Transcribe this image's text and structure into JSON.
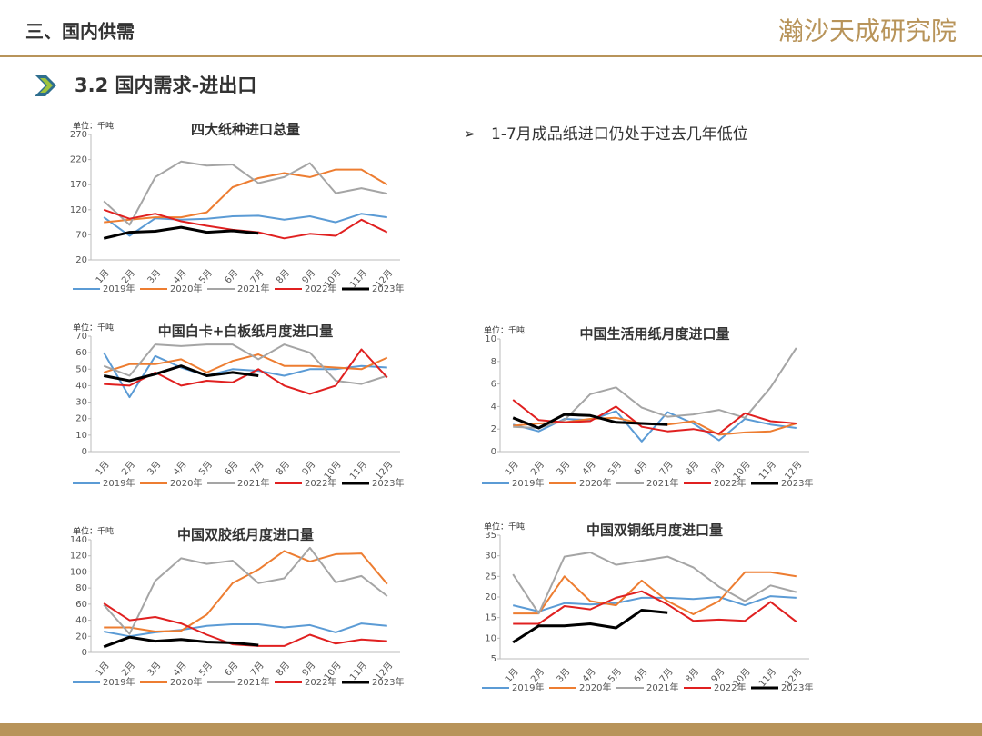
{
  "header": {
    "title": "三、国内供需",
    "logo": "瀚沙天成研究院"
  },
  "subtitle": "3.2 国内需求-进出口",
  "bullet": "1-7月成品纸进口仍处于过去几年低位",
  "chart_data": [
    {
      "type": "line",
      "title": "四大纸种进口总量",
      "unit": "单位：千吨",
      "categories": [
        "1月",
        "2月",
        "3月",
        "4月",
        "5月",
        "6月",
        "7月",
        "8月",
        "9月",
        "10月",
        "11月",
        "12月"
      ],
      "ylim": [
        20,
        270
      ],
      "yticks": [
        20,
        70,
        120,
        170,
        220,
        270
      ],
      "series": [
        {
          "name": "2019年",
          "color": "#5b9bd5",
          "values": [
            105,
            68,
            103,
            100,
            102,
            107,
            108,
            100,
            107,
            95,
            112,
            105
          ]
        },
        {
          "name": "2020年",
          "color": "#ed7d31",
          "values": [
            95,
            100,
            105,
            105,
            115,
            165,
            183,
            193,
            185,
            200,
            200,
            170
          ]
        },
        {
          "name": "2021年",
          "color": "#a5a5a5",
          "values": [
            137,
            90,
            185,
            216,
            208,
            210,
            173,
            185,
            213,
            153,
            163,
            152
          ]
        },
        {
          "name": "2022年",
          "color": "#e02020",
          "values": [
            120,
            102,
            112,
            97,
            88,
            80,
            75,
            63,
            72,
            68,
            100,
            75
          ]
        },
        {
          "name": "2023年",
          "color": "#000000",
          "values": [
            63,
            75,
            77,
            85,
            75,
            78,
            73,
            null,
            null,
            null,
            null,
            null
          ]
        }
      ]
    },
    {
      "type": "line",
      "title": "中国白卡+白板纸月度进口量",
      "unit": "单位：千吨",
      "categories": [
        "1月",
        "2月",
        "3月",
        "4月",
        "5月",
        "6月",
        "7月",
        "8月",
        "9月",
        "10月",
        "11月",
        "12月"
      ],
      "ylim": [
        0,
        70
      ],
      "yticks": [
        0,
        10,
        20,
        30,
        40,
        50,
        60,
        70
      ],
      "series": [
        {
          "name": "2019年",
          "color": "#5b9bd5",
          "values": [
            60,
            33,
            58,
            51,
            46,
            50,
            49,
            46,
            50,
            50,
            52,
            51
          ]
        },
        {
          "name": "2020年",
          "color": "#ed7d31",
          "values": [
            48,
            53,
            53,
            56,
            48,
            55,
            59,
            52,
            52,
            51,
            50,
            57
          ]
        },
        {
          "name": "2021年",
          "color": "#a5a5a5",
          "values": [
            52,
            46,
            65,
            64,
            65,
            65,
            56,
            65,
            60,
            43,
            41,
            46
          ]
        },
        {
          "name": "2022年",
          "color": "#e02020",
          "values": [
            41,
            40,
            48,
            40,
            43,
            42,
            50,
            40,
            35,
            40,
            62,
            45
          ]
        },
        {
          "name": "2023年",
          "color": "#000000",
          "values": [
            46,
            43,
            47,
            52,
            46,
            48,
            46,
            null,
            null,
            null,
            null,
            null
          ]
        }
      ]
    },
    {
      "type": "line",
      "title": "中国生活用纸月度进口量",
      "unit": "单位：千吨",
      "categories": [
        "1月",
        "2月",
        "3月",
        "4月",
        "5月",
        "6月",
        "7月",
        "8月",
        "9月",
        "10月",
        "11月",
        "12月"
      ],
      "ylim": [
        0,
        10
      ],
      "yticks": [
        0,
        2,
        4,
        6,
        8,
        10
      ],
      "series": [
        {
          "name": "2019年",
          "color": "#5b9bd5",
          "values": [
            2.4,
            1.8,
            2.9,
            2.8,
            3.6,
            0.9,
            3.5,
            2.5,
            1.0,
            2.9,
            2.4,
            2.1
          ]
        },
        {
          "name": "2020年",
          "color": "#ed7d31",
          "values": [
            2.3,
            2.5,
            2.6,
            2.9,
            3.0,
            2.5,
            2.4,
            2.7,
            1.5,
            1.7,
            1.8,
            2.5
          ]
        },
        {
          "name": "2021年",
          "color": "#a5a5a5",
          "values": [
            2.2,
            2.1,
            2.8,
            5.1,
            5.7,
            3.9,
            3.1,
            3.3,
            3.7,
            3.0,
            5.7,
            9.2
          ]
        },
        {
          "name": "2022年",
          "color": "#e02020",
          "values": [
            4.6,
            2.8,
            2.6,
            2.7,
            4.0,
            2.2,
            1.8,
            2.0,
            1.6,
            3.4,
            2.7,
            2.5
          ]
        },
        {
          "name": "2023年",
          "color": "#000000",
          "values": [
            3.0,
            2.1,
            3.3,
            3.2,
            2.6,
            2.5,
            2.4,
            null,
            null,
            null,
            null,
            null
          ]
        }
      ]
    },
    {
      "type": "line",
      "title": "中国双胶纸月度进口量",
      "unit": "单位：千吨",
      "categories": [
        "1月",
        "2月",
        "3月",
        "4月",
        "5月",
        "6月",
        "7月",
        "8月",
        "9月",
        "10月",
        "11月",
        "12月"
      ],
      "ylim": [
        0,
        140
      ],
      "yticks": [
        0,
        20,
        40,
        60,
        80,
        100,
        120,
        140
      ],
      "series": [
        {
          "name": "2019年",
          "color": "#5b9bd5",
          "values": [
            26,
            20,
            25,
            28,
            33,
            35,
            35,
            31,
            34,
            25,
            36,
            33
          ]
        },
        {
          "name": "2020年",
          "color": "#ed7d31",
          "values": [
            31,
            31,
            26,
            27,
            47,
            86,
            103,
            126,
            113,
            122,
            123,
            85
          ]
        },
        {
          "name": "2021年",
          "color": "#a5a5a5",
          "values": [
            59,
            23,
            89,
            117,
            110,
            114,
            86,
            92,
            130,
            87,
            95,
            70
          ]
        },
        {
          "name": "2022年",
          "color": "#e02020",
          "values": [
            61,
            40,
            44,
            36,
            22,
            10,
            8,
            8,
            22,
            11,
            16,
            14
          ]
        },
        {
          "name": "2023年",
          "color": "#000000",
          "values": [
            7,
            19,
            14,
            16,
            13,
            12,
            9,
            null,
            null,
            null,
            null,
            null
          ]
        }
      ]
    },
    {
      "type": "line",
      "title": "中国双铜纸月度进口量",
      "unit": "单位：千吨",
      "categories": [
        "1月",
        "2月",
        "3月",
        "4月",
        "5月",
        "6月",
        "7月",
        "8月",
        "9月",
        "10月",
        "11月",
        "12月"
      ],
      "ylim": [
        5,
        35
      ],
      "yticks": [
        5,
        10,
        15,
        20,
        25,
        30,
        35
      ],
      "series": [
        {
          "name": "2019年",
          "color": "#5b9bd5",
          "values": [
            18,
            16.5,
            18.5,
            18.2,
            18.5,
            19.8,
            19.8,
            19.5,
            20,
            18,
            20.2,
            19.8
          ]
        },
        {
          "name": "2020年",
          "color": "#ed7d31",
          "values": [
            16,
            16,
            25,
            19,
            18,
            24,
            19,
            15.8,
            19,
            26,
            26,
            25
          ]
        },
        {
          "name": "2021年",
          "color": "#a5a5a5",
          "values": [
            25.5,
            16,
            29.8,
            30.8,
            27.8,
            28.8,
            29.8,
            27.2,
            22.5,
            19,
            22.8,
            21.2
          ]
        },
        {
          "name": "2022年",
          "color": "#e02020",
          "values": [
            13.5,
            13.5,
            17.8,
            17,
            19.8,
            21.4,
            18.2,
            14.2,
            14.5,
            14.2,
            18.8,
            14
          ]
        },
        {
          "name": "2023年",
          "color": "#000000",
          "values": [
            9,
            13,
            13,
            13.5,
            12.5,
            16.8,
            16.2,
            null,
            null,
            null,
            null,
            null
          ]
        }
      ]
    }
  ]
}
